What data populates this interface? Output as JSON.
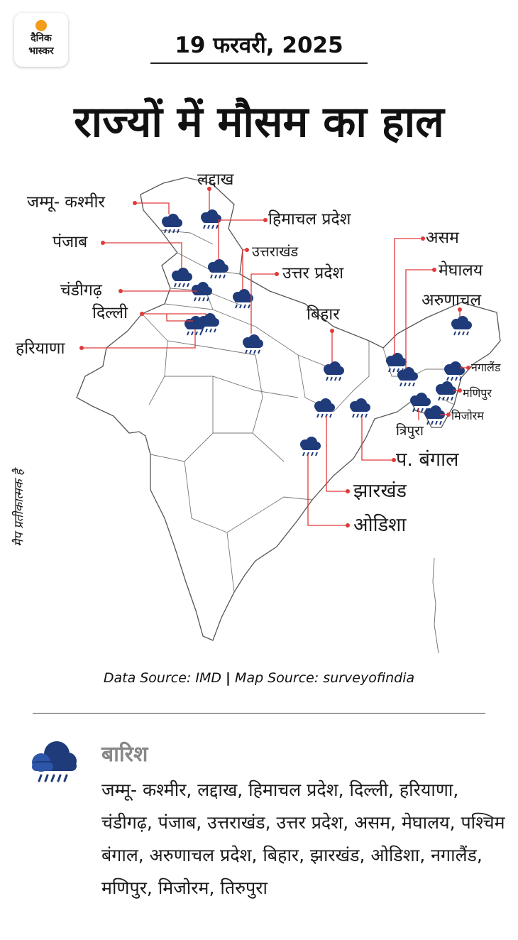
{
  "brand": {
    "line1": "दैनिक",
    "line2": "भास्कर",
    "accent": "#f39c1e"
  },
  "header": {
    "date": "19 फरवरी, 2025",
    "title": "राज्यों में मौसम का हाल"
  },
  "map": {
    "note": "मैप प्रतीकात्मक है",
    "leader_color": "#e03a3a",
    "icon_color": "#1f3b7a",
    "labels": {
      "jammu_kashmir": "जम्मू- कश्मीर",
      "ladakh": "लद्दाख",
      "himachal": "हिमाचल प्रदेश",
      "punjab": "पंजाब",
      "uttarakhand": "उत्तराखंड",
      "chandigarh": "चंडीगढ़",
      "uttar_pradesh": "उत्तर प्रदेश",
      "delhi": "दिल्ली",
      "bihar": "बिहार",
      "haryana": "हरियाणा",
      "assam": "असम",
      "meghalaya": "मेघालय",
      "arunachal": "अरुणाचल",
      "nagaland": "नगालैंड",
      "manipur": "मणिपुर",
      "mizoram": "मिजोरम",
      "tripura": "त्रिपुरा",
      "west_bengal": "प. बंगाल",
      "jharkhand": "झारखंड",
      "odisha": "ओडिशा"
    }
  },
  "source": {
    "data": "Data Source: IMD",
    "separator": "|",
    "map": "Map Source: surveyofindia"
  },
  "legend": {
    "icon": "rain-cloud-icon",
    "title": "बारिश",
    "states": "जम्मू- कश्मीर, लद्दाख, हिमाचल प्रदेश, दिल्ली, हरियाणा, चंडीगढ़, पंजाब, उत्तराखंड, उत्तर प्रदेश, असम, मेघालय, पश्चिम बंगाल, अरुणाचल प्रदेश, बिहार, झारखंड, ओडिशा, नगालैंड, मणिपुर, मिजोरम, तिरुपुरा"
  }
}
